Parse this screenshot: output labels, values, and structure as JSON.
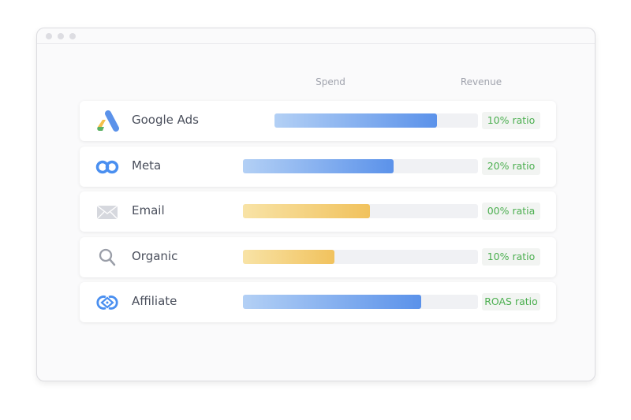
{
  "columns": {
    "spend": "Spend",
    "revenue": "Revenue"
  },
  "colors": {
    "blue_start": "#b3d0f5",
    "blue_end": "#5b92ea",
    "yellow_start": "#f8e3a6",
    "yellow_end": "#f1c25d",
    "ratio_text": "#4caf50"
  },
  "channels": [
    {
      "name": "Google Ads",
      "icon": "google-ads-icon",
      "spend_fraction": 0.8,
      "bar_color": "blue",
      "ratio": "10% ratio"
    },
    {
      "name": "Meta",
      "icon": "meta-icon",
      "spend_fraction": 0.64,
      "bar_color": "blue",
      "ratio": "20% ratio"
    },
    {
      "name": "Email",
      "icon": "envelope-icon",
      "spend_fraction": 0.54,
      "bar_color": "yellow",
      "ratio": "00% ratia"
    },
    {
      "name": "Organic",
      "icon": "search-icon",
      "spend_fraction": 0.39,
      "bar_color": "yellow",
      "ratio": "10% ratio"
    },
    {
      "name": "Affiliate",
      "icon": "affiliate-icon",
      "spend_fraction": 0.76,
      "bar_color": "blue",
      "ratio": "ROAS ratio"
    }
  ]
}
